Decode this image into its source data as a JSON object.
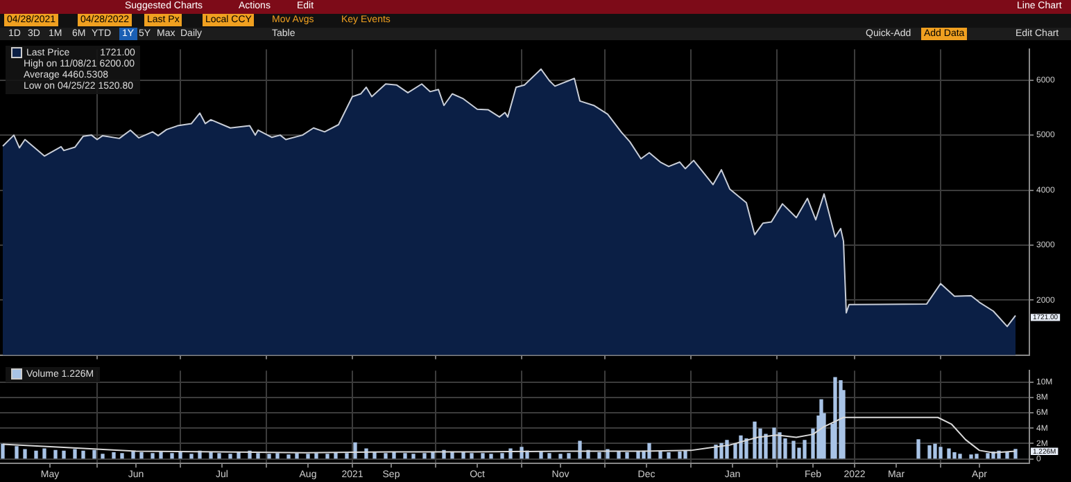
{
  "chart_data": [
    {
      "type": "area",
      "xlim": [
        "2021-04-27",
        "2022-05-03"
      ],
      "ylim": [
        1000,
        6560
      ],
      "yticks": [
        2000,
        3000,
        4000,
        5000,
        6000
      ],
      "xticks": [
        {
          "value": "2021-06-01",
          "label": null
        },
        {
          "value": "2021-07-01",
          "label": null
        },
        {
          "value": "2021-08-01",
          "label": null
        },
        {
          "value": "2021-09-01",
          "label": null
        },
        {
          "value": "2021-10-01",
          "label": null
        },
        {
          "value": "2021-11-01",
          "label": null
        },
        {
          "value": "2021-12-01",
          "label": null
        },
        {
          "value": "2022-01-01",
          "label": null
        },
        {
          "value": "2022-02-01",
          "label": null
        },
        {
          "value": "2022-03-01",
          "label": null
        },
        {
          "value": "2022-04-01",
          "label": null
        }
      ],
      "tick_labels": "y",
      "grid": true,
      "marker": "none",
      "legend": "top left",
      "series": [
        {
          "name": "Last Price",
          "color": "#0b1f45",
          "x": [
            "2021-04-28",
            "2021-05-02",
            "2021-05-04",
            "2021-05-06",
            "2021-05-13",
            "2021-05-19",
            "2021-05-20",
            "2021-05-24",
            "2021-05-27",
            "2021-05-30",
            "2021-06-01",
            "2021-06-03",
            "2021-06-09",
            "2021-06-13",
            "2021-06-16",
            "2021-06-21",
            "2021-06-23",
            "2021-06-26",
            "2021-06-30",
            "2021-07-05",
            "2021-07-08",
            "2021-07-10",
            "2021-07-12",
            "2021-07-19",
            "2021-07-26",
            "2021-07-28",
            "2021-07-29",
            "2021-08-03",
            "2021-08-06",
            "2021-08-08",
            "2021-08-14",
            "2021-08-18",
            "2021-08-22",
            "2021-08-27",
            "2021-09-01",
            "2021-09-04",
            "2021-09-06",
            "2021-09-08",
            "2021-09-13",
            "2021-09-17",
            "2021-09-21",
            "2021-09-26",
            "2021-09-29",
            "2021-10-02",
            "2021-10-04",
            "2021-10-07",
            "2021-10-11",
            "2021-10-16",
            "2021-10-20",
            "2021-10-24",
            "2021-10-26",
            "2021-10-27",
            "2021-10-30",
            "2021-11-02",
            "2021-11-08",
            "2021-11-11",
            "2021-11-13",
            "2021-11-20",
            "2021-11-22",
            "2021-11-27",
            "2021-12-02",
            "2021-12-07",
            "2021-12-10",
            "2021-12-14",
            "2021-12-17",
            "2021-12-21",
            "2021-12-24",
            "2021-12-28",
            "2021-12-30",
            "2022-01-02",
            "2022-01-09",
            "2022-01-12",
            "2022-01-15",
            "2022-01-21",
            "2022-01-24",
            "2022-01-27",
            "2022-01-30",
            "2022-02-03",
            "2022-02-08",
            "2022-02-12",
            "2022-02-15",
            "2022-02-18",
            "2022-02-22",
            "2022-02-24",
            "2022-02-25",
            "2022-02-26",
            "2022-02-27",
            "2022-03-27",
            "2022-04-01",
            "2022-04-06",
            "2022-04-12",
            "2022-04-15",
            "2022-04-20",
            "2022-04-25",
            "2022-04-28"
          ],
          "values": [
            4800,
            5000,
            4770,
            4920,
            4620,
            4790,
            4720,
            4780,
            4980,
            5000,
            4920,
            4990,
            4940,
            5090,
            4950,
            5060,
            4990,
            5100,
            5170,
            5210,
            5400,
            5210,
            5280,
            5130,
            5170,
            5000,
            5090,
            4960,
            5000,
            4920,
            5000,
            5130,
            5060,
            5190,
            5700,
            5750,
            5870,
            5700,
            5930,
            5910,
            5770,
            5930,
            5790,
            5830,
            5540,
            5750,
            5660,
            5470,
            5460,
            5330,
            5410,
            5330,
            5870,
            5910,
            6200,
            5990,
            5890,
            6030,
            5620,
            5540,
            5380,
            5050,
            4880,
            4570,
            4680,
            4510,
            4430,
            4510,
            4390,
            4540,
            4100,
            4370,
            4020,
            3770,
            3190,
            3400,
            3420,
            3750,
            3500,
            3850,
            3460,
            3930,
            3150,
            3300,
            3070,
            1770,
            1920,
            1930,
            2300,
            2070,
            2080,
            1960,
            1800,
            1520.8,
            1721
          ]
        }
      ],
      "annotations": [
        "Suggested Charts",
        "Actions",
        "Edit",
        "Line Chart",
        "04/28/2021",
        "04/28/2022",
        "Last Px",
        "Local CCY",
        "Mov Avgs",
        "Key Events",
        "1D",
        "3D",
        "1M",
        "6M",
        "YTD",
        "1Y",
        "5Y",
        "Max",
        "Daily",
        "Table",
        "Quick-Add",
        "Add Data",
        "Edit Chart",
        "1721.00",
        "High on 11/08/21 6200.00",
        "Average 4460.5308",
        "Low on 04/25/22 1520.80",
        {
          "text": "1721.00",
          "x": "2022-04-28",
          "y": 1721
        }
      ]
    },
    {
      "type": "bar",
      "xlim": [
        "2021-04-27",
        "2022-05-03"
      ],
      "ylim": [
        -0.6,
        11.5
      ],
      "yticks": [
        0,
        {
          "value": 2,
          "label": "2M"
        },
        {
          "value": 4,
          "label": "4M"
        },
        {
          "value": 6,
          "label": "6M"
        },
        {
          "value": 8,
          "label": "8M"
        },
        {
          "value": 10,
          "label": "10M"
        }
      ],
      "xticks": [
        {
          "value": "2021-05-15",
          "label": "May"
        },
        {
          "value": "2021-06-01",
          "label": null
        },
        {
          "value": "2021-06-15",
          "label": "Jun"
        },
        {
          "value": "2021-07-01",
          "label": null
        },
        {
          "value": "2021-07-16",
          "label": "Jul"
        },
        {
          "value": "2021-08-01",
          "label": null
        },
        {
          "value": "2021-08-16",
          "label": "Aug"
        },
        {
          "value": "2021-09-01",
          "label": "2021"
        },
        {
          "value": "2021-09-15",
          "label": "Sep"
        },
        {
          "value": "2021-10-01",
          "label": null
        },
        {
          "value": "2021-10-16",
          "label": "Oct"
        },
        {
          "value": "2021-11-01",
          "label": null
        },
        {
          "value": "2021-11-15",
          "label": "Nov"
        },
        {
          "value": "2021-12-01",
          "label": null
        },
        {
          "value": "2021-12-16",
          "label": "Dec"
        },
        {
          "value": "2022-01-01",
          "label": null
        },
        {
          "value": "2022-01-16",
          "label": "Jan"
        },
        {
          "value": "2022-02-01",
          "label": null
        },
        {
          "value": "2022-02-14",
          "label": "Feb"
        },
        {
          "value": "2022-03-01",
          "label": "2022"
        },
        {
          "value": "2022-03-16",
          "label": "Mar"
        },
        {
          "value": "2022-04-01",
          "label": null
        },
        {
          "value": "2022-04-15",
          "label": "Apr"
        }
      ],
      "grid": true,
      "marker": "none",
      "legend": "top left",
      "series": [
        {
          "name": "Volume 1.226M",
          "color": "#a8c3e6",
          "x": [
            "2021-04-28",
            "2021-05-03",
            "2021-05-06",
            "2021-05-10",
            "2021-05-13",
            "2021-05-17",
            "2021-05-20",
            "2021-05-24",
            "2021-05-27",
            "2021-05-31",
            "2021-06-03",
            "2021-06-07",
            "2021-06-10",
            "2021-06-14",
            "2021-06-17",
            "2021-06-21",
            "2021-06-24",
            "2021-06-28",
            "2021-07-01",
            "2021-07-05",
            "2021-07-08",
            "2021-07-12",
            "2021-07-15",
            "2021-07-19",
            "2021-07-22",
            "2021-07-26",
            "2021-07-29",
            "2021-08-02",
            "2021-08-05",
            "2021-08-09",
            "2021-08-12",
            "2021-08-16",
            "2021-08-19",
            "2021-08-23",
            "2021-08-26",
            "2021-08-30",
            "2021-09-02",
            "2021-09-06",
            "2021-09-09",
            "2021-09-13",
            "2021-09-16",
            "2021-09-20",
            "2021-09-23",
            "2021-09-27",
            "2021-09-30",
            "2021-10-04",
            "2021-10-07",
            "2021-10-11",
            "2021-10-14",
            "2021-10-18",
            "2021-10-21",
            "2021-10-25",
            "2021-10-28",
            "2021-11-01",
            "2021-11-03",
            "2021-11-08",
            "2021-11-11",
            "2021-11-15",
            "2021-11-18",
            "2021-11-22",
            "2021-11-25",
            "2021-11-29",
            "2021-12-02",
            "2021-12-06",
            "2021-12-09",
            "2021-12-13",
            "2021-12-15",
            "2021-12-17",
            "2021-12-21",
            "2021-12-24",
            "2021-12-28",
            "2021-12-30",
            "2022-01-10",
            "2022-01-12",
            "2022-01-14",
            "2022-01-17",
            "2022-01-19",
            "2022-01-21",
            "2022-01-24",
            "2022-01-26",
            "2022-01-28",
            "2022-01-31",
            "2022-02-02",
            "2022-02-04",
            "2022-02-07",
            "2022-02-09",
            "2022-02-11",
            "2022-02-14",
            "2022-02-16",
            "2022-02-17",
            "2022-02-18",
            "2022-02-21",
            "2022-02-22",
            "2022-02-24",
            "2022-02-25",
            "2022-03-24",
            "2022-03-28",
            "2022-03-30",
            "2022-04-01",
            "2022-04-04",
            "2022-04-06",
            "2022-04-08",
            "2022-04-12",
            "2022-04-14",
            "2022-04-18",
            "2022-04-20",
            "2022-04-22",
            "2022-04-25",
            "2022-04-28"
          ],
          "values": [
            1.9,
            1.6,
            1.2,
            1.0,
            1.3,
            1.1,
            1.0,
            1.2,
            1.0,
            1.1,
            0.6,
            0.8,
            0.7,
            0.9,
            0.8,
            0.7,
            0.9,
            0.7,
            0.8,
            0.6,
            1.0,
            0.8,
            0.7,
            0.6,
            0.9,
            1.0,
            0.7,
            0.6,
            0.7,
            0.5,
            0.7,
            0.6,
            0.7,
            0.6,
            0.8,
            0.7,
            2.1,
            1.3,
            0.8,
            0.7,
            0.8,
            0.7,
            0.6,
            0.7,
            0.8,
            1.1,
            0.9,
            0.8,
            0.7,
            0.7,
            0.6,
            0.7,
            1.3,
            1.5,
            1.0,
            0.9,
            0.7,
            0.6,
            0.7,
            2.3,
            1.1,
            0.8,
            1.2,
            0.9,
            0.8,
            0.9,
            1.0,
            2.0,
            0.9,
            0.8,
            0.9,
            1.0,
            1.8,
            2.0,
            2.4,
            1.9,
            3.0,
            2.6,
            4.8,
            3.9,
            3.2,
            4.0,
            3.4,
            2.6,
            2.3,
            1.4,
            2.4,
            3.9,
            5.6,
            7.7,
            5.9,
            4.5,
            10.6,
            10.2,
            8.9,
            2.5,
            1.7,
            1.9,
            1.5,
            1.3,
            0.8,
            0.6,
            0.5,
            0.6,
            0.7,
            0.9,
            1.0,
            0.9,
            1.226
          ]
        },
        {
          "type": "line",
          "color": "#d9d9d9",
          "x": [
            "2021-04-28",
            "2021-05-20",
            "2021-06-15",
            "2021-07-15",
            "2021-08-15",
            "2021-09-15",
            "2021-10-15",
            "2021-11-15",
            "2021-12-15",
            "2022-01-01",
            "2022-01-15",
            "2022-01-25",
            "2022-02-01",
            "2022-02-08",
            "2022-02-14",
            "2022-02-18",
            "2022-02-25",
            "2022-03-31",
            "2022-04-05",
            "2022-04-10",
            "2022-04-15",
            "2022-04-20",
            "2022-04-28"
          ],
          "values": [
            1.9,
            1.5,
            1.0,
            0.9,
            0.8,
            0.9,
            0.9,
            1.0,
            1.0,
            1.1,
            1.8,
            2.8,
            3.1,
            2.8,
            3.2,
            4.2,
            5.4,
            5.4,
            4.5,
            2.5,
            1.1,
            0.8,
            1.0
          ]
        }
      ],
      "annotations": [
        {
          "text": "1.226M",
          "x": "2022-04-28",
          "y": 1.226
        }
      ]
    }
  ]
}
